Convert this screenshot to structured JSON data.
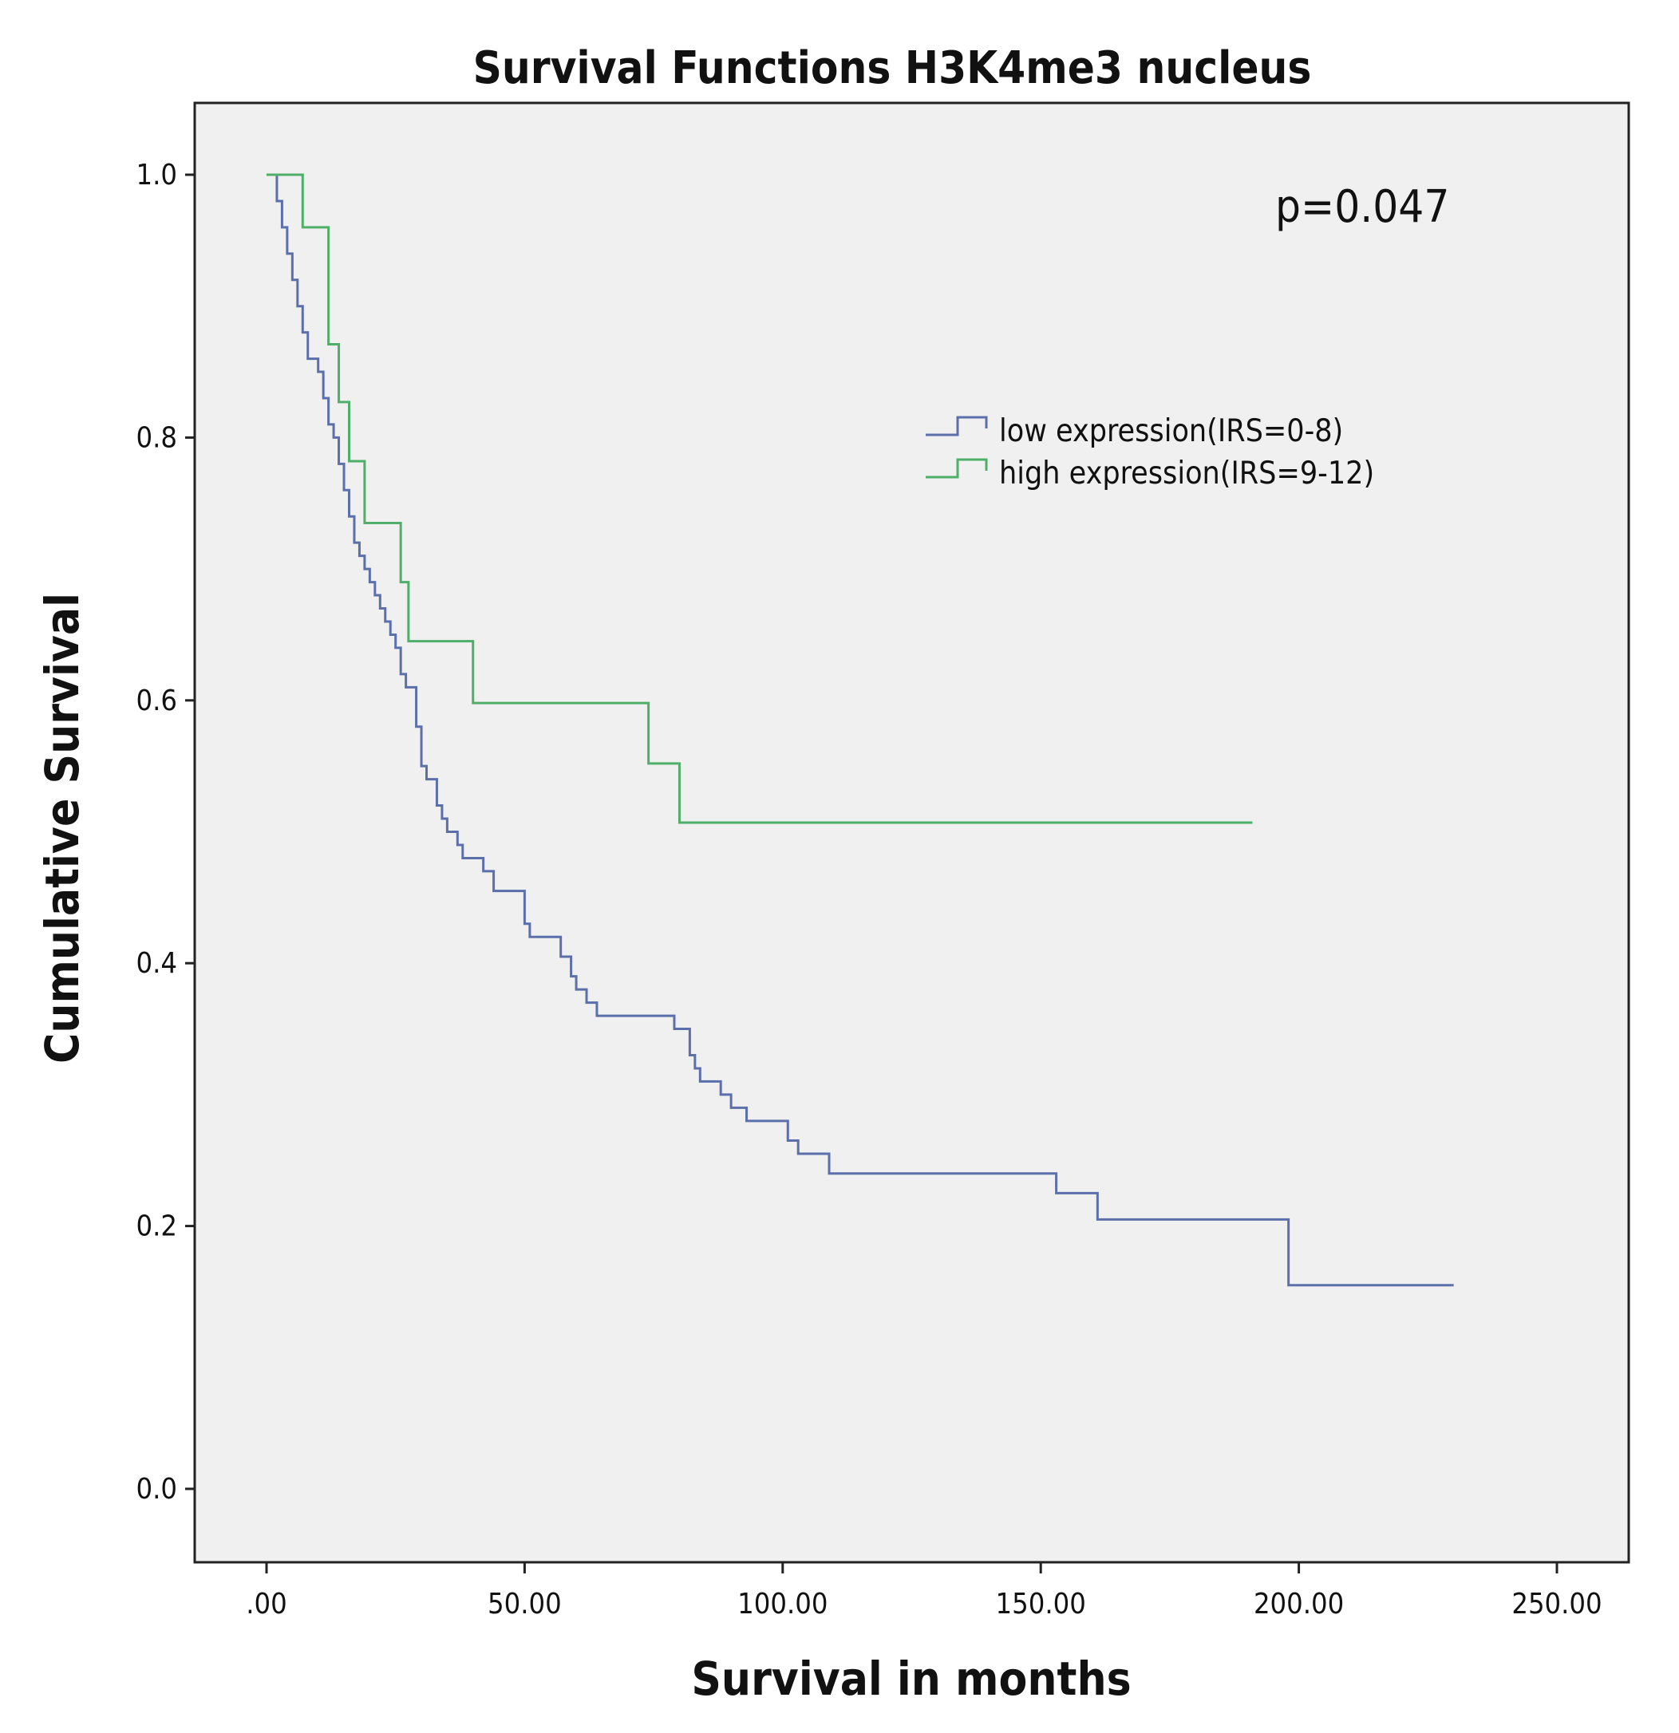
{
  "chart_data": {
    "type": "line",
    "step": true,
    "title": "Survival Functions H3K4me3 nucleus",
    "xlabel": "Survival in months",
    "ylabel": "Cumulative Survival",
    "xlim": [
      -15,
      262
    ],
    "ylim": [
      -0.055,
      1.055
    ],
    "x_ticks": [
      0,
      50,
      100,
      150,
      200,
      250
    ],
    "x_tick_labels": [
      ".00",
      "50.00",
      "100.00",
      "150.00",
      "200.00",
      "250.00"
    ],
    "y_ticks": [
      0,
      0.2,
      0.4,
      0.6,
      0.8,
      1.0
    ],
    "y_tick_labels": [
      "0.0",
      "0.2",
      "0.4",
      "0.6",
      "0.8",
      "1.0"
    ],
    "grid": false,
    "background": "#f0f0f0",
    "legend_position": "upper-right",
    "annotation": "p=0.047",
    "series": [
      {
        "name": "low expression(IRS=0-8)",
        "color": "#5b6fab",
        "x": [
          0,
          2,
          3,
          4,
          5,
          6,
          7,
          8,
          10,
          11,
          12,
          13,
          14,
          15,
          16,
          17,
          18,
          19,
          20,
          21,
          22,
          23,
          24,
          25,
          26,
          27,
          29,
          30,
          31,
          33,
          34,
          35,
          37,
          38,
          42,
          44,
          50,
          51,
          57,
          59,
          60,
          62,
          64,
          79,
          82,
          83,
          84,
          88,
          90,
          93,
          101,
          103,
          109,
          153,
          161,
          198,
          230
        ],
        "y": [
          1.0,
          0.98,
          0.96,
          0.94,
          0.92,
          0.9,
          0.88,
          0.86,
          0.85,
          0.83,
          0.81,
          0.8,
          0.78,
          0.76,
          0.74,
          0.72,
          0.71,
          0.7,
          0.69,
          0.68,
          0.67,
          0.66,
          0.65,
          0.64,
          0.62,
          0.61,
          0.58,
          0.55,
          0.54,
          0.52,
          0.51,
          0.5,
          0.49,
          0.48,
          0.47,
          0.455,
          0.43,
          0.42,
          0.405,
          0.39,
          0.38,
          0.37,
          0.36,
          0.35,
          0.33,
          0.32,
          0.31,
          0.3,
          0.29,
          0.28,
          0.265,
          0.255,
          0.24,
          0.225,
          0.205,
          0.155,
          0.155
        ]
      },
      {
        "name": "high expression(IRS=9-12)",
        "color": "#4fae68",
        "x": [
          0,
          7,
          12,
          14,
          16,
          19,
          26,
          27.5,
          40,
          74,
          80,
          191
        ],
        "y": [
          1.0,
          0.96,
          0.871,
          0.827,
          0.782,
          0.735,
          0.69,
          0.645,
          0.598,
          0.552,
          0.507,
          0.507
        ]
      }
    ]
  }
}
